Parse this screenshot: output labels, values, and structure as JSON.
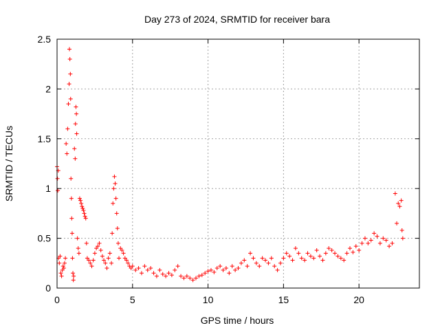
{
  "chart_data": {
    "type": "scatter",
    "title": "Day 273 of 2024, SRMTID for receiver bara",
    "xlabel": "GPS time / hours",
    "ylabel": "SRMTID / TECUs",
    "xlim": [
      0,
      24
    ],
    "ylim": [
      0,
      2.5
    ],
    "xticks": [
      "0",
      "5",
      "10",
      "15",
      "20"
    ],
    "yticks": [
      "0",
      "0.5",
      "1",
      "1.5",
      "2",
      "2.5"
    ],
    "grid": true,
    "marker": "+",
    "color": "#ff0000",
    "series": [
      {
        "name": "SRMTID",
        "points": [
          [
            0.0,
            1.22
          ],
          [
            0.03,
            1.1
          ],
          [
            0.05,
            0.98
          ],
          [
            0.08,
            1.18
          ],
          [
            0.1,
            0.3
          ],
          [
            0.15,
            0.25
          ],
          [
            0.2,
            0.32
          ],
          [
            0.25,
            0.15
          ],
          [
            0.3,
            0.12
          ],
          [
            0.35,
            0.18
          ],
          [
            0.4,
            0.22
          ],
          [
            0.45,
            0.2
          ],
          [
            0.5,
            0.25
          ],
          [
            0.55,
            0.3
          ],
          [
            0.6,
            1.45
          ],
          [
            0.65,
            1.35
          ],
          [
            0.7,
            1.6
          ],
          [
            0.75,
            1.85
          ],
          [
            0.8,
            2.05
          ],
          [
            0.82,
            2.4
          ],
          [
            0.85,
            2.3
          ],
          [
            0.88,
            2.15
          ],
          [
            0.9,
            1.9
          ],
          [
            0.92,
            1.1
          ],
          [
            0.95,
            0.9
          ],
          [
            0.97,
            0.7
          ],
          [
            1.0,
            0.55
          ],
          [
            1.02,
            0.3
          ],
          [
            1.05,
            0.15
          ],
          [
            1.08,
            0.08
          ],
          [
            1.1,
            0.12
          ],
          [
            1.15,
            1.4
          ],
          [
            1.2,
            1.3
          ],
          [
            1.22,
            1.65
          ],
          [
            1.25,
            1.82
          ],
          [
            1.28,
            1.75
          ],
          [
            1.3,
            1.55
          ],
          [
            1.35,
            0.5
          ],
          [
            1.4,
            0.4
          ],
          [
            1.45,
            0.35
          ],
          [
            1.5,
            0.9
          ],
          [
            1.55,
            0.88
          ],
          [
            1.6,
            0.85
          ],
          [
            1.65,
            0.82
          ],
          [
            1.7,
            0.8
          ],
          [
            1.75,
            0.78
          ],
          [
            1.8,
            0.75
          ],
          [
            1.85,
            0.72
          ],
          [
            1.9,
            0.7
          ],
          [
            1.95,
            0.45
          ],
          [
            2.0,
            0.3
          ],
          [
            2.1,
            0.28
          ],
          [
            2.2,
            0.25
          ],
          [
            2.3,
            0.22
          ],
          [
            2.4,
            0.28
          ],
          [
            2.5,
            0.35
          ],
          [
            2.6,
            0.4
          ],
          [
            2.7,
            0.42
          ],
          [
            2.8,
            0.45
          ],
          [
            2.9,
            0.38
          ],
          [
            3.0,
            0.32
          ],
          [
            3.1,
            0.28
          ],
          [
            3.2,
            0.25
          ],
          [
            3.3,
            0.2
          ],
          [
            3.4,
            0.3
          ],
          [
            3.5,
            0.35
          ],
          [
            3.6,
            0.25
          ],
          [
            3.65,
            0.55
          ],
          [
            3.7,
            0.85
          ],
          [
            3.75,
            1.0
          ],
          [
            3.8,
            1.12
          ],
          [
            3.85,
            1.05
          ],
          [
            3.9,
            0.9
          ],
          [
            3.95,
            0.75
          ],
          [
            4.0,
            0.6
          ],
          [
            4.05,
            0.45
          ],
          [
            4.1,
            0.3
          ],
          [
            4.2,
            0.4
          ],
          [
            4.3,
            0.38
          ],
          [
            4.4,
            0.35
          ],
          [
            4.5,
            0.3
          ],
          [
            4.6,
            0.28
          ],
          [
            4.7,
            0.25
          ],
          [
            4.8,
            0.22
          ],
          [
            4.9,
            0.2
          ],
          [
            5.0,
            0.22
          ],
          [
            5.2,
            0.18
          ],
          [
            5.4,
            0.2
          ],
          [
            5.6,
            0.15
          ],
          [
            5.8,
            0.22
          ],
          [
            6.0,
            0.18
          ],
          [
            6.2,
            0.2
          ],
          [
            6.4,
            0.15
          ],
          [
            6.6,
            0.12
          ],
          [
            6.8,
            0.18
          ],
          [
            7.0,
            0.14
          ],
          [
            7.2,
            0.12
          ],
          [
            7.4,
            0.15
          ],
          [
            7.6,
            0.13
          ],
          [
            7.8,
            0.18
          ],
          [
            8.0,
            0.22
          ],
          [
            8.2,
            0.12
          ],
          [
            8.4,
            0.1
          ],
          [
            8.6,
            0.12
          ],
          [
            8.8,
            0.1
          ],
          [
            9.0,
            0.08
          ],
          [
            9.2,
            0.1
          ],
          [
            9.4,
            0.12
          ],
          [
            9.6,
            0.13
          ],
          [
            9.8,
            0.15
          ],
          [
            10.0,
            0.17
          ],
          [
            10.2,
            0.18
          ],
          [
            10.4,
            0.16
          ],
          [
            10.6,
            0.2
          ],
          [
            10.8,
            0.22
          ],
          [
            11.0,
            0.18
          ],
          [
            11.2,
            0.2
          ],
          [
            11.4,
            0.15
          ],
          [
            11.6,
            0.22
          ],
          [
            11.8,
            0.18
          ],
          [
            12.0,
            0.2
          ],
          [
            12.2,
            0.25
          ],
          [
            12.4,
            0.28
          ],
          [
            12.6,
            0.22
          ],
          [
            12.8,
            0.35
          ],
          [
            13.0,
            0.3
          ],
          [
            13.2,
            0.25
          ],
          [
            13.4,
            0.22
          ],
          [
            13.6,
            0.3
          ],
          [
            13.8,
            0.28
          ],
          [
            14.0,
            0.25
          ],
          [
            14.2,
            0.3
          ],
          [
            14.4,
            0.22
          ],
          [
            14.6,
            0.18
          ],
          [
            14.8,
            0.25
          ],
          [
            15.0,
            0.3
          ],
          [
            15.2,
            0.35
          ],
          [
            15.4,
            0.32
          ],
          [
            15.6,
            0.28
          ],
          [
            15.8,
            0.4
          ],
          [
            16.0,
            0.35
          ],
          [
            16.2,
            0.3
          ],
          [
            16.4,
            0.28
          ],
          [
            16.6,
            0.35
          ],
          [
            16.8,
            0.32
          ],
          [
            17.0,
            0.3
          ],
          [
            17.2,
            0.38
          ],
          [
            17.4,
            0.32
          ],
          [
            17.6,
            0.28
          ],
          [
            17.8,
            0.35
          ],
          [
            18.0,
            0.4
          ],
          [
            18.2,
            0.38
          ],
          [
            18.4,
            0.35
          ],
          [
            18.6,
            0.32
          ],
          [
            18.8,
            0.3
          ],
          [
            19.0,
            0.28
          ],
          [
            19.2,
            0.35
          ],
          [
            19.4,
            0.4
          ],
          [
            19.6,
            0.36
          ],
          [
            19.8,
            0.42
          ],
          [
            20.0,
            0.38
          ],
          [
            20.2,
            0.45
          ],
          [
            20.4,
            0.5
          ],
          [
            20.6,
            0.45
          ],
          [
            20.8,
            0.48
          ],
          [
            21.0,
            0.55
          ],
          [
            21.2,
            0.52
          ],
          [
            21.4,
            0.45
          ],
          [
            21.6,
            0.5
          ],
          [
            21.8,
            0.48
          ],
          [
            22.0,
            0.42
          ],
          [
            22.2,
            0.45
          ],
          [
            22.4,
            0.95
          ],
          [
            22.5,
            0.65
          ],
          [
            22.6,
            0.85
          ],
          [
            22.7,
            0.82
          ],
          [
            22.8,
            0.88
          ],
          [
            22.85,
            0.58
          ],
          [
            22.9,
            0.5
          ]
        ]
      }
    ]
  }
}
